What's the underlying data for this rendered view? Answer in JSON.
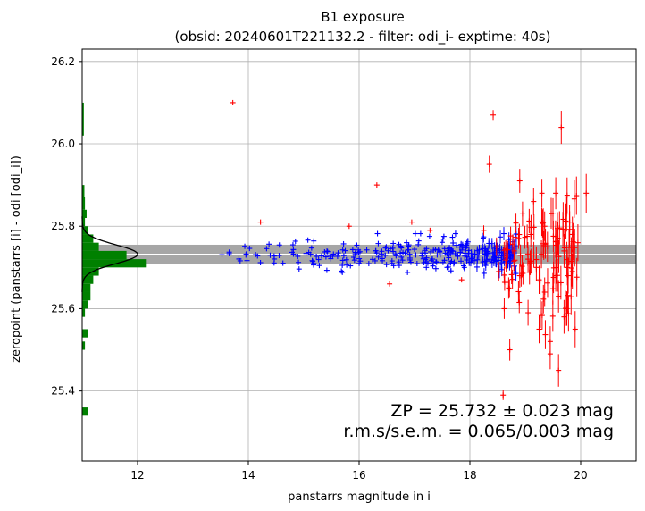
{
  "chart_data": {
    "type": "scatter",
    "title": "B1 exposure",
    "subtitle": "(obsid: 20240601T221132.2 - filter: odi_i- exptime: 40s)",
    "xlabel": "panstarrs magnitude in i",
    "ylabel": "zeropoint (panstarrs [i] - odi [odi_i])",
    "xlim": [
      11.0,
      21.0
    ],
    "ylim": [
      25.23,
      26.23
    ],
    "xticks": [
      "12",
      "14",
      "16",
      "18",
      "20"
    ],
    "yticks": [
      "25.4",
      "25.6",
      "25.8",
      "26.0",
      "26.2"
    ],
    "grid": true,
    "annotations": [
      "ZP = 25.732 ± 0.023 mag",
      "r.m.s/s.e.m. = 0.065/0.003 mag"
    ],
    "zeropoint": 25.732,
    "zp_band": [
      25.709,
      25.755
    ],
    "colors": {
      "accepted": "#0000ff",
      "rejected": "#ff0000",
      "histogram": "#008000",
      "band": "#a6a6a6",
      "zp_line": "#ffffff",
      "gauss": "#000000"
    },
    "histogram": {
      "bins": [
        {
          "y0": 25.34,
          "y1": 25.36,
          "w": 0.1
        },
        {
          "y0": 25.5,
          "y1": 25.52,
          "w": 0.05
        },
        {
          "y0": 25.53,
          "y1": 25.55,
          "w": 0.1
        },
        {
          "y0": 25.58,
          "y1": 25.6,
          "w": 0.05
        },
        {
          "y0": 25.6,
          "y1": 25.62,
          "w": 0.1
        },
        {
          "y0": 25.62,
          "y1": 25.64,
          "w": 0.15
        },
        {
          "y0": 25.64,
          "y1": 25.66,
          "w": 0.15
        },
        {
          "y0": 25.66,
          "y1": 25.68,
          "w": 0.2
        },
        {
          "y0": 25.68,
          "y1": 25.7,
          "w": 0.3
        },
        {
          "y0": 25.7,
          "y1": 25.72,
          "w": 1.15
        },
        {
          "y0": 25.72,
          "y1": 25.74,
          "w": 0.8
        },
        {
          "y0": 25.74,
          "y1": 25.76,
          "w": 0.3
        },
        {
          "y0": 25.76,
          "y1": 25.78,
          "w": 0.2
        },
        {
          "y0": 25.78,
          "y1": 25.8,
          "w": 0.1
        },
        {
          "y0": 25.8,
          "y1": 25.82,
          "w": 0.05
        },
        {
          "y0": 25.82,
          "y1": 25.84,
          "w": 0.08
        },
        {
          "y0": 25.84,
          "y1": 25.87,
          "w": 0.05
        },
        {
          "y0": 25.87,
          "y1": 25.9,
          "w": 0.04
        },
        {
          "y0": 26.02,
          "y1": 26.1,
          "w": 0.03
        }
      ]
    },
    "gauss": {
      "mu": 25.732,
      "sigma": 0.023,
      "amp": 1.0
    },
    "rejected_bright": [
      [
        13.72,
        26.1
      ],
      [
        14.22,
        25.81
      ],
      [
        15.82,
        25.8
      ],
      [
        16.32,
        25.9
      ],
      [
        16.55,
        25.66
      ],
      [
        16.95,
        25.81
      ],
      [
        17.28,
        25.79
      ],
      [
        17.85,
        25.67
      ],
      [
        18.25,
        25.79
      ],
      [
        18.42,
        26.07
      ],
      [
        18.6,
        25.39
      ]
    ],
    "rejected_faint": [
      [
        18.35,
        25.95
      ],
      [
        18.48,
        25.75
      ],
      [
        18.52,
        25.69
      ],
      [
        18.62,
        25.6
      ],
      [
        18.72,
        25.5
      ],
      [
        18.8,
        25.74
      ],
      [
        18.9,
        25.68
      ],
      [
        18.95,
        25.83
      ],
      [
        19.05,
        25.59
      ],
      [
        19.1,
        25.78
      ],
      [
        19.15,
        25.86
      ],
      [
        19.2,
        25.7
      ],
      [
        19.25,
        25.55
      ],
      [
        19.3,
        25.88
      ],
      [
        19.35,
        25.64
      ],
      [
        19.4,
        25.75
      ],
      [
        19.45,
        25.52
      ],
      [
        19.5,
        25.83
      ],
      [
        19.55,
        25.68
      ],
      [
        19.6,
        25.45
      ],
      [
        19.65,
        26.04
      ],
      [
        19.7,
        25.74
      ],
      [
        19.75,
        25.6
      ],
      [
        19.8,
        25.81
      ],
      [
        19.85,
        25.69
      ],
      [
        19.9,
        25.55
      ],
      [
        19.95,
        25.76
      ],
      [
        20.1,
        25.88
      ],
      [
        18.9,
        25.91
      ],
      [
        19.45,
        25.49
      ],
      [
        19.7,
        25.58
      ],
      [
        19.05,
        25.72
      ],
      [
        19.35,
        25.8
      ],
      [
        18.7,
        25.65
      ],
      [
        19.6,
        25.63
      ],
      [
        19.25,
        25.67
      ],
      [
        19.85,
        25.78
      ],
      [
        19.55,
        25.88
      ]
    ],
    "accepted_points": {
      "count": 300,
      "mag_range": [
        13.5,
        18.85
      ],
      "center": 25.732,
      "note": ""
    }
  }
}
